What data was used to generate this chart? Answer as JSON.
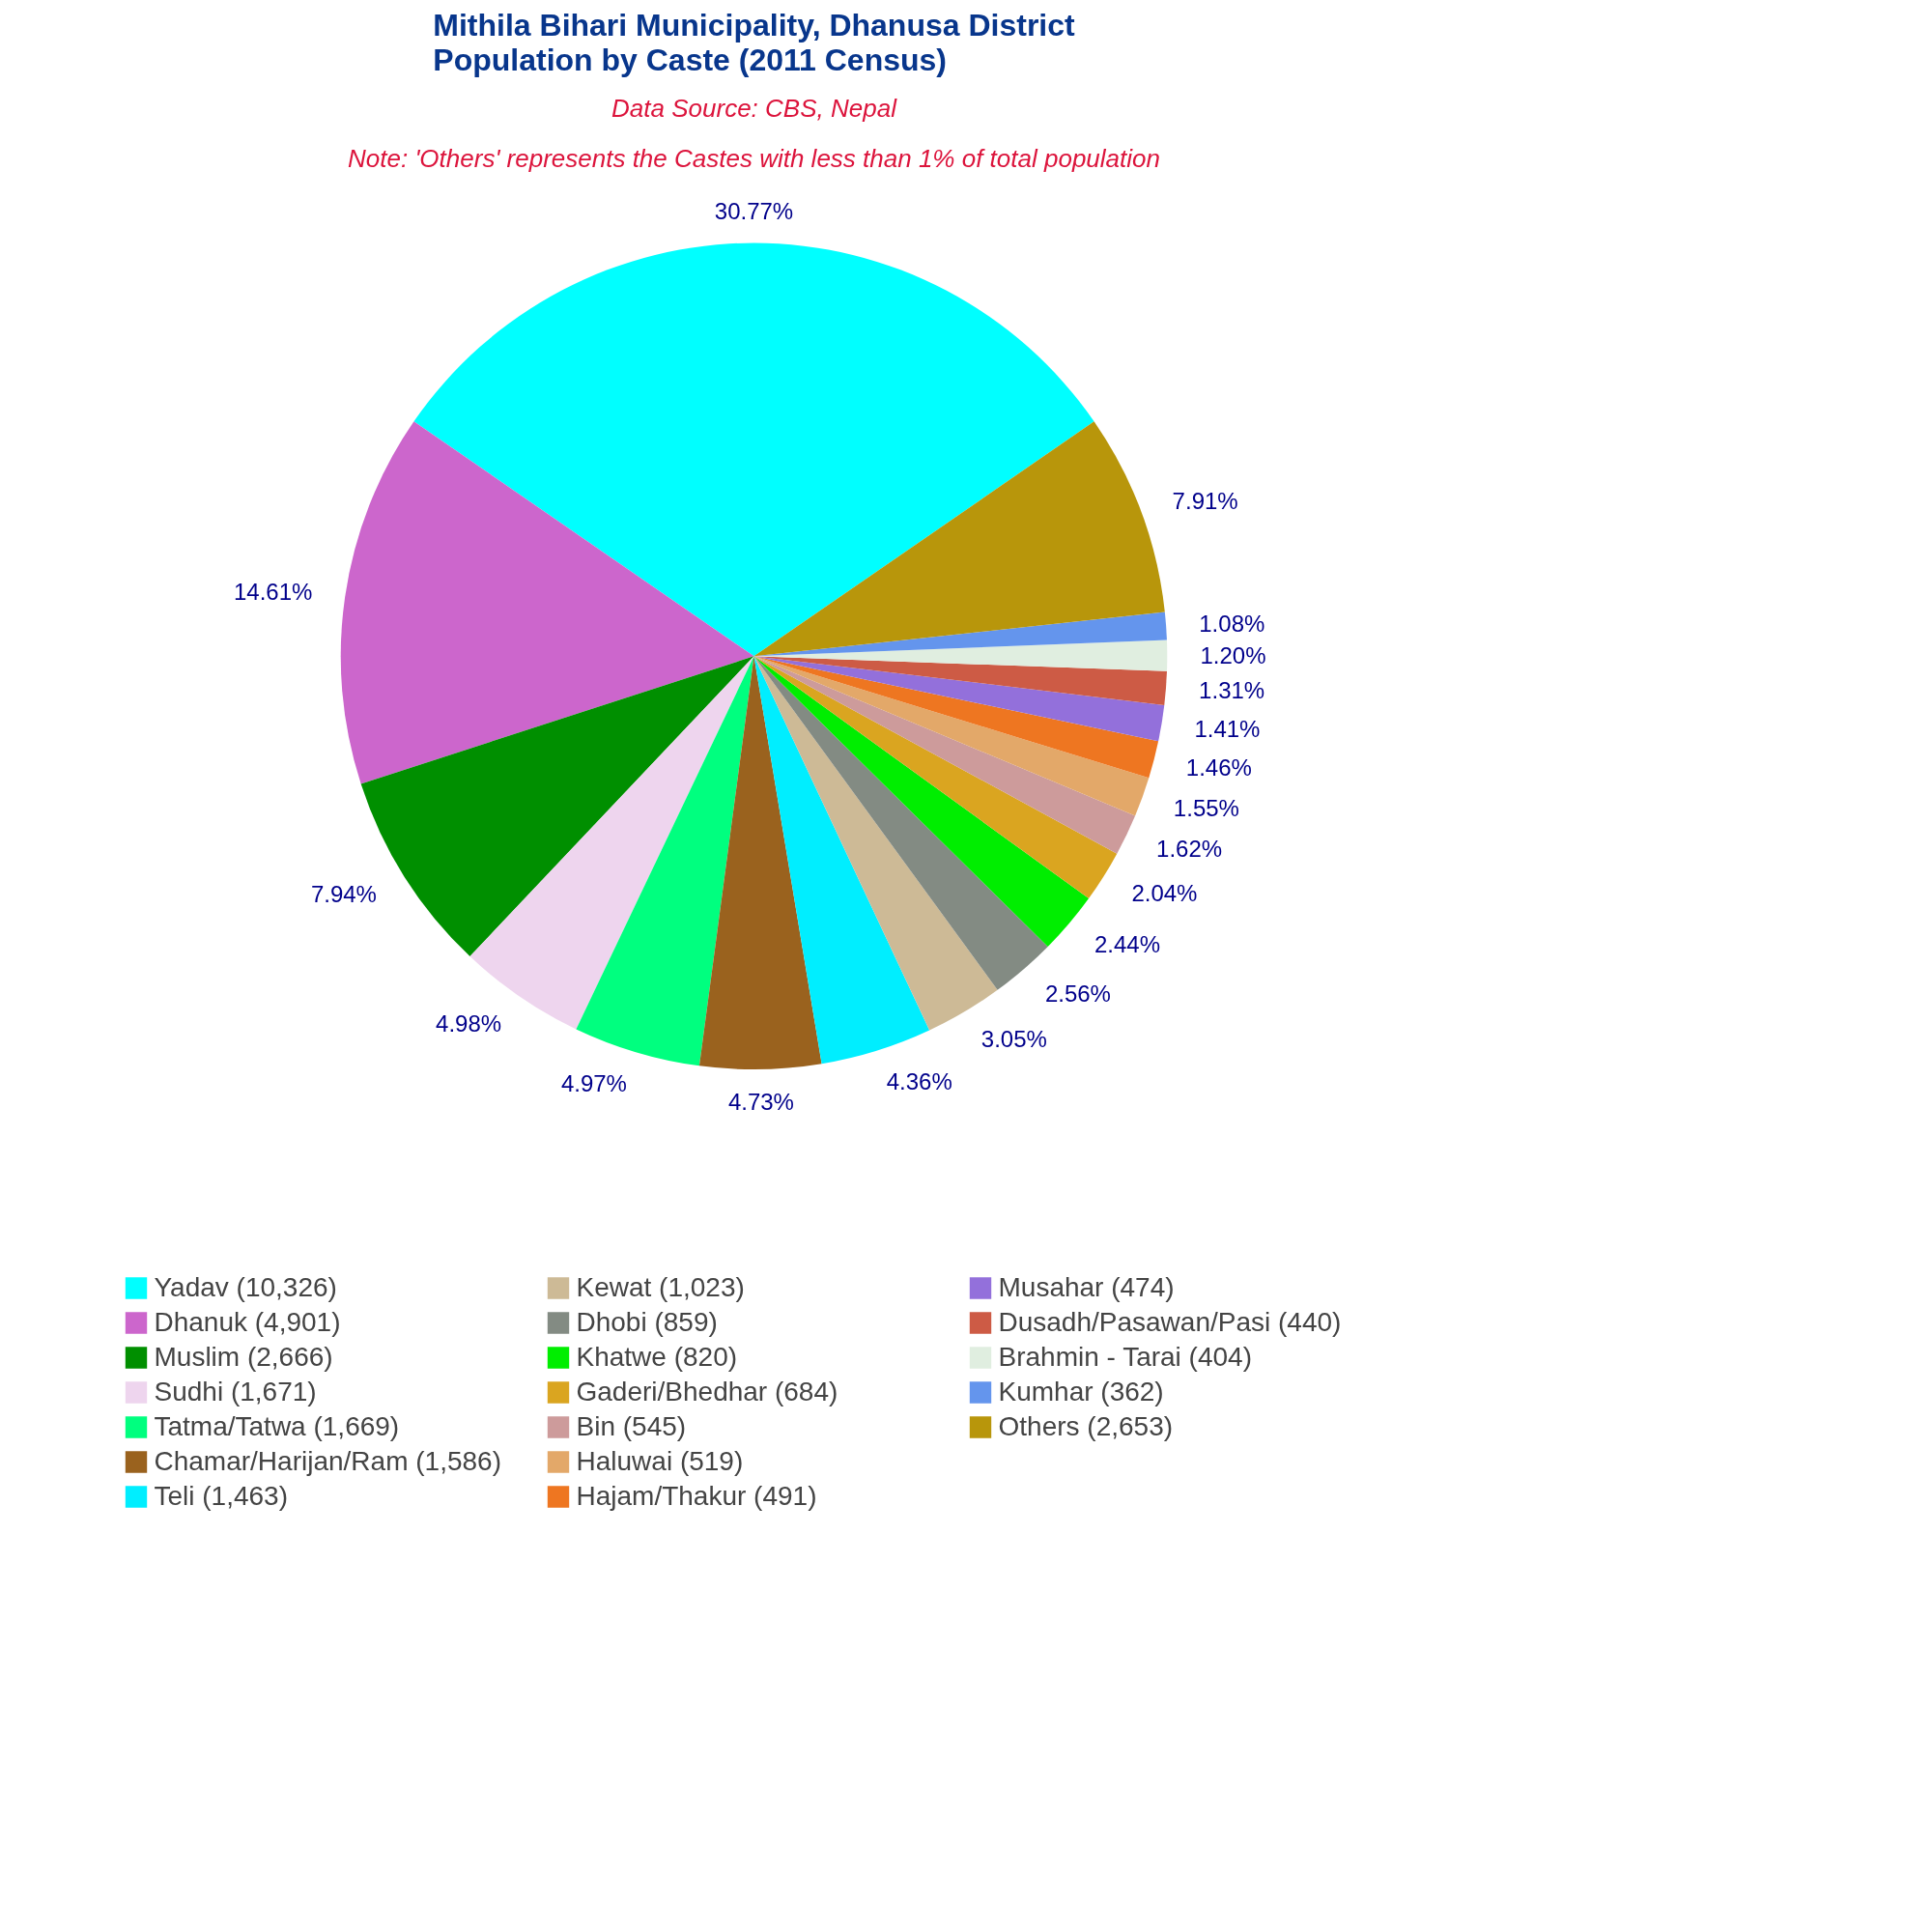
{
  "chart_data": {
    "type": "pie",
    "title": "Mithila Bihari Municipality, Dhanusa District\nPopulation by Caste (2011 Census)",
    "subtitle": "Data Source: CBS, Nepal",
    "annotations": [
      "Note: 'Others' represents the Castes with less than 1% of total population"
    ],
    "categories": [
      "Yadav (10,326)",
      "Dhanuk (4,901)",
      "Muslim (2,666)",
      "Sudhi (1,671)",
      "Tatma/Tatwa (1,669)",
      "Chamar/Harijan/Ram (1,586)",
      "Teli (1,463)",
      "Kewat (1,023)",
      "Dhobi (859)",
      "Khatwe (820)",
      "Gaderi/Bhedhar (684)",
      "Bin (545)",
      "Haluwai (519)",
      "Hajam/Thakur (491)",
      "Musahar (474)",
      "Dusadh/Pasawan/Pasi (440)",
      "Brahmin - Tarai (404)",
      "Kumhar (362)",
      "Others (2,653)"
    ],
    "values": [
      30.77,
      14.61,
      7.94,
      4.98,
      4.97,
      4.73,
      4.36,
      3.05,
      2.56,
      2.44,
      2.04,
      1.62,
      1.55,
      1.46,
      1.41,
      1.31,
      1.2,
      1.08,
      7.91
    ],
    "value_labels": [
      "30.77%",
      "14.61%",
      "7.94%",
      "4.98%",
      "4.97%",
      "4.73%",
      "4.36%",
      "3.05%",
      "2.56%",
      "2.44%",
      "2.04%",
      "1.62%",
      "1.55%",
      "1.46%",
      "1.41%",
      "1.31%",
      "1.20%",
      "1.08%",
      "7.91%"
    ],
    "colors": [
      "#00ffff",
      "#cc66cc",
      "#008f00",
      "#eed5ee",
      "#00ff7f",
      "#9a621e",
      "#00eeff",
      "#cdba96",
      "#838b83",
      "#00ee00",
      "#daa520",
      "#cd9b9b",
      "#e3a869",
      "#ee7621",
      "#9370db",
      "#cd5b45",
      "#e0eee0",
      "#6495ed",
      "#b8960b"
    ],
    "legend": "bottom"
  }
}
